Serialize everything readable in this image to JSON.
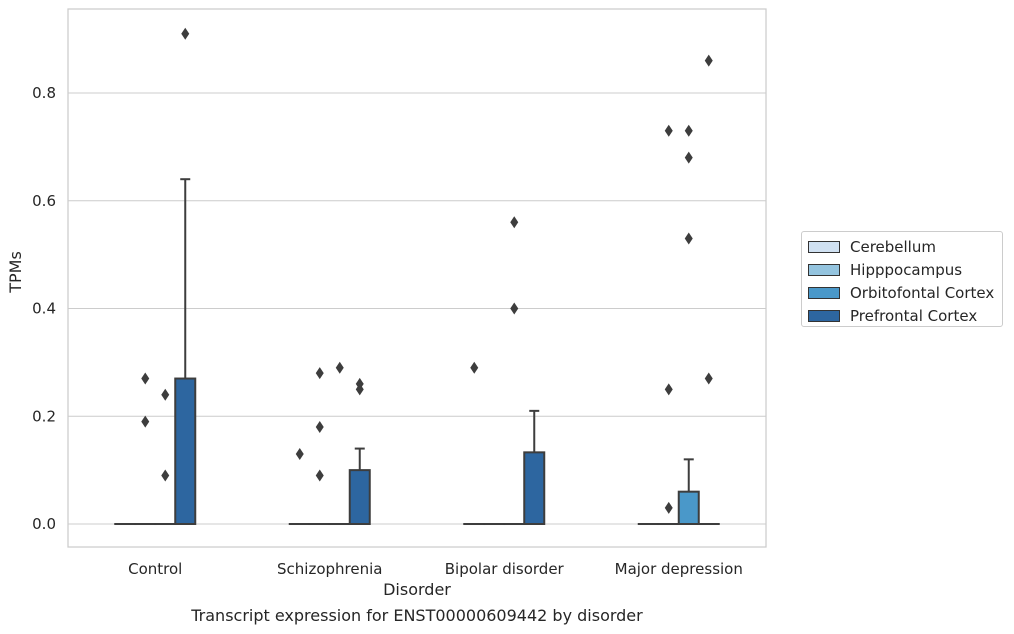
{
  "chart_data": {
    "type": "box",
    "xlabel": "Disorder",
    "ylabel": "TPMs",
    "caption": "Transcript expression for ENST00000609442 by disorder",
    "categories": [
      "Control",
      "Schizophrenia",
      "Bipolar disorder",
      "Major depression"
    ],
    "ylim": [
      -0.045,
      0.955
    ],
    "yticks": [
      "0.0",
      "0.2",
      "0.4",
      "0.6",
      "0.8"
    ],
    "grid": "horizontal",
    "legend_position": "right",
    "series": [
      {
        "name": "Cerebellum",
        "color": "#d0e1f2",
        "boxes": [
          {
            "min": 0,
            "q1": 0,
            "median": 0,
            "q3": 0,
            "max": 0,
            "outliers": []
          },
          {
            "min": 0,
            "q1": 0,
            "median": 0,
            "q3": 0,
            "max": 0,
            "outliers": [
              0.13
            ]
          },
          {
            "min": 0,
            "q1": 0,
            "median": 0,
            "q3": 0,
            "max": 0,
            "outliers": [
              0.29
            ]
          },
          {
            "min": 0,
            "q1": 0,
            "median": 0,
            "q3": 0,
            "max": 0,
            "outliers": []
          }
        ]
      },
      {
        "name": "Hipppocampus",
        "color": "#94c4df",
        "boxes": [
          {
            "min": 0,
            "q1": 0,
            "median": 0,
            "q3": 0,
            "max": 0,
            "outliers": [
              0.27,
              0.19
            ]
          },
          {
            "min": 0,
            "q1": 0,
            "median": 0,
            "q3": 0,
            "max": 0,
            "outliers": [
              0.28,
              0.18,
              0.09
            ]
          },
          {
            "min": 0,
            "q1": 0,
            "median": 0,
            "q3": 0,
            "max": 0,
            "outliers": []
          },
          {
            "min": 0,
            "q1": 0,
            "median": 0,
            "q3": 0,
            "max": 0,
            "outliers": [
              0.73,
              0.25,
              0.03
            ]
          }
        ]
      },
      {
        "name": "Orbitofontal Cortex",
        "color": "#4a98c9",
        "boxes": [
          {
            "min": 0,
            "q1": 0,
            "median": 0,
            "q3": 0,
            "max": 0,
            "outliers": [
              0.24,
              0.09
            ]
          },
          {
            "min": 0,
            "q1": 0,
            "median": 0,
            "q3": 0,
            "max": 0,
            "outliers": [
              0.29
            ]
          },
          {
            "min": 0,
            "q1": 0,
            "median": 0,
            "q3": 0,
            "max": 0,
            "outliers": [
              0.56,
              0.4
            ]
          },
          {
            "min": 0,
            "q1": 0,
            "median": 0,
            "q3": 0.06,
            "max": 0.12,
            "outliers": [
              0.73,
              0.68,
              0.53
            ]
          }
        ]
      },
      {
        "name": "Prefrontal Cortex",
        "color": "#2d66a0",
        "boxes": [
          {
            "min": 0,
            "q1": 0,
            "median": 0,
            "q3": 0.27,
            "max": 0.64,
            "outliers": [
              0.91
            ]
          },
          {
            "min": 0,
            "q1": 0,
            "median": 0,
            "q3": 0.1,
            "max": 0.14,
            "outliers": [
              0.26,
              0.25
            ]
          },
          {
            "min": 0,
            "q1": 0,
            "median": 0,
            "q3": 0.133,
            "max": 0.21,
            "outliers": []
          },
          {
            "min": 0,
            "q1": 0,
            "median": 0,
            "q3": 0,
            "max": 0,
            "outliers": [
              0.86,
              0.27
            ]
          }
        ]
      }
    ]
  }
}
